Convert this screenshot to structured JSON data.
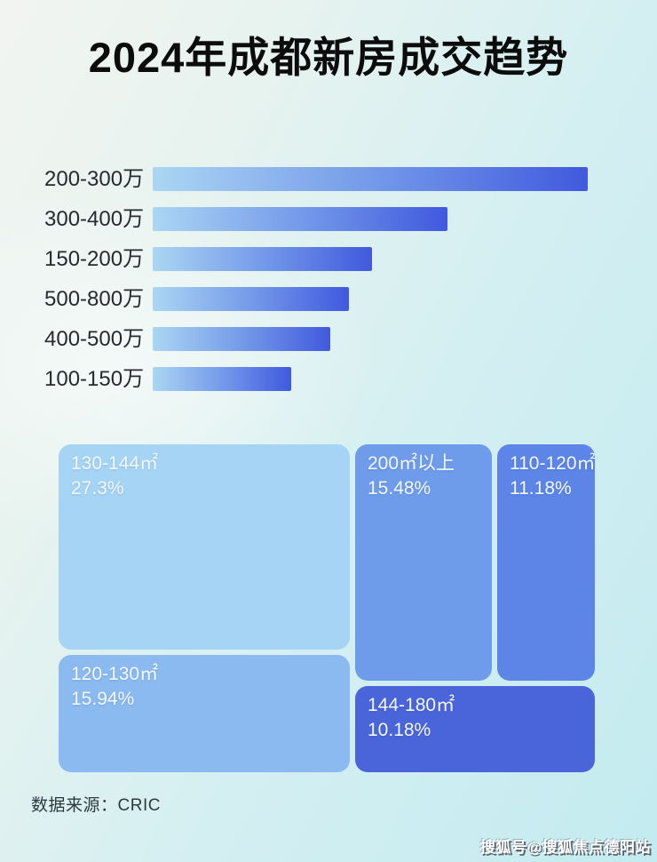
{
  "page": {
    "title": "2024年成都新房成交趋势",
    "source_note": "数据来源：CRIC",
    "watermark": "搜狐号@搜狐焦点德阳站"
  },
  "colors": {
    "bar_gradient_start": "#abd6f3",
    "bar_gradient_end": "#4159de",
    "title_color": "#0c0c0c",
    "background_light": "#f2f4f1",
    "background_cyan": "#c3ebf0"
  },
  "bar_chart": {
    "rows": [
      {
        "label": "200-300万",
        "relative_length_pct": 100
      },
      {
        "label": "300-400万",
        "relative_length_pct": 67.7
      },
      {
        "label": "150-200万",
        "relative_length_pct": 50.5
      },
      {
        "label": "500-800万",
        "relative_length_pct": 45.2
      },
      {
        "label": "400-500万",
        "relative_length_pct": 40.9
      },
      {
        "label": "100-150万",
        "relative_length_pct": 31.9
      }
    ]
  },
  "treemap": {
    "blocks": [
      {
        "label": "130-144㎡",
        "percent": "27.3%",
        "color": "#a6d4f4"
      },
      {
        "label": "200㎡以上",
        "percent": "15.48%",
        "color": "#6f9cea"
      },
      {
        "label": "110-120㎡",
        "percent": "11.18%",
        "color": "#5c85e7"
      },
      {
        "label": "120-130㎡",
        "percent": "15.94%",
        "color": "#8abaef"
      },
      {
        "label": "144-180㎡",
        "percent": "10.18%",
        "color": "#4a64da"
      }
    ]
  },
  "chart_data": [
    {
      "type": "bar",
      "title": "2024年成都新房成交趋势",
      "orientation": "horizontal",
      "categories": [
        "200-300万",
        "300-400万",
        "150-200万",
        "500-800万",
        "400-500万",
        "100-150万"
      ],
      "values_relative_to_longest_pct": [
        100,
        67.7,
        50.5,
        45.2,
        40.9,
        31.9
      ],
      "value_labels_shown": false,
      "axis_shown": false,
      "grid": false,
      "bar_color_gradient": [
        "#abd6f3",
        "#4159de"
      ]
    },
    {
      "type": "treemap",
      "items": [
        {
          "label": "130-144㎡",
          "value_pct": 27.3
        },
        {
          "label": "200㎡以上",
          "value_pct": 15.48
        },
        {
          "label": "110-120㎡",
          "value_pct": 11.18
        },
        {
          "label": "120-130㎡",
          "value_pct": 15.94
        },
        {
          "label": "144-180㎡",
          "value_pct": 10.18
        }
      ],
      "value_format": "percent",
      "source": "CRIC"
    }
  ]
}
